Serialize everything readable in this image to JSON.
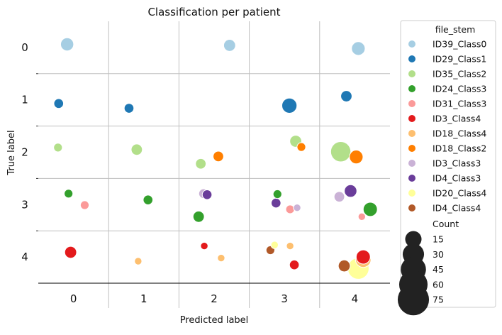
{
  "chart_data": {
    "type": "scatter",
    "title": "Classification per patient",
    "xlabel": "Predicted label",
    "ylabel": "True label",
    "x_ticks": [
      "0",
      "1",
      "2",
      "3",
      "4"
    ],
    "y_ticks": [
      "0",
      "1",
      "2",
      "3",
      "4"
    ],
    "xlim": [
      -0.5,
      4.5
    ],
    "ylim": [
      4.5,
      -0.5
    ],
    "grid": true,
    "legend_position": "outside-right",
    "hue_title": "file_stem",
    "size_title": "Count",
    "series": [
      {
        "name": "ID39_Class0",
        "color": "#a6cee3",
        "points": [
          {
            "x": -0.09,
            "y": -0.06,
            "count": 8
          },
          {
            "x": 2.22,
            "y": -0.04,
            "count": 6
          },
          {
            "x": 4.05,
            "y": 0.02,
            "count": 9
          }
        ]
      },
      {
        "name": "ID29_Class1",
        "color": "#1f78b4",
        "points": [
          {
            "x": -0.21,
            "y": 1.07,
            "count": 3
          },
          {
            "x": 0.79,
            "y": 1.16,
            "count": 3
          },
          {
            "x": 3.07,
            "y": 1.11,
            "count": 12
          },
          {
            "x": 3.88,
            "y": 0.93,
            "count": 5
          }
        ]
      },
      {
        "name": "ID35_Class2",
        "color": "#b2df8a",
        "points": [
          {
            "x": -0.22,
            "y": 1.91,
            "count": 2
          },
          {
            "x": 0.9,
            "y": 1.95,
            "count": 5
          },
          {
            "x": 1.81,
            "y": 2.22,
            "count": 4
          },
          {
            "x": 3.16,
            "y": 1.79,
            "count": 6
          },
          {
            "x": 3.8,
            "y": 1.99,
            "count": 26
          }
        ]
      },
      {
        "name": "ID24_Class3",
        "color": "#33a02c",
        "points": [
          {
            "x": -0.07,
            "y": 2.79,
            "count": 2
          },
          {
            "x": 1.06,
            "y": 2.91,
            "count": 3
          },
          {
            "x": 1.78,
            "y": 3.23,
            "count": 5
          },
          {
            "x": 2.9,
            "y": 2.8,
            "count": 2
          },
          {
            "x": 4.22,
            "y": 3.09,
            "count": 10
          }
        ]
      },
      {
        "name": "ID31_Class3",
        "color": "#fb9a99",
        "points": [
          {
            "x": 0.16,
            "y": 3.01,
            "count": 2
          },
          {
            "x": 3.08,
            "y": 3.09,
            "count": 2
          },
          {
            "x": 4.1,
            "y": 3.23,
            "count": 1
          }
        ]
      },
      {
        "name": "ID3_Class4",
        "color": "#e31a1c",
        "points": [
          {
            "x": -0.04,
            "y": 3.91,
            "count": 6
          },
          {
            "x": 1.86,
            "y": 3.79,
            "count": 1
          },
          {
            "x": 3.14,
            "y": 4.15,
            "count": 3
          },
          {
            "x": 4.12,
            "y": 4.0,
            "count": 10
          }
        ]
      },
      {
        "name": "ID18_Class4",
        "color": "#fdbf6f",
        "points": [
          {
            "x": 0.92,
            "y": 4.08,
            "count": 1
          },
          {
            "x": 2.1,
            "y": 4.02,
            "count": 1
          },
          {
            "x": 3.08,
            "y": 3.79,
            "count": 1
          },
          {
            "x": 4.12,
            "y": 4.05,
            "count": 13
          }
        ]
      },
      {
        "name": "ID18_Class2",
        "color": "#ff7f00",
        "points": [
          {
            "x": 2.06,
            "y": 2.08,
            "count": 4
          },
          {
            "x": 3.24,
            "y": 1.9,
            "count": 2
          },
          {
            "x": 4.02,
            "y": 2.09,
            "count": 9
          }
        ]
      },
      {
        "name": "ID3_Class3",
        "color": "#cab2d6",
        "points": [
          {
            "x": 1.85,
            "y": 2.79,
            "count": 3
          },
          {
            "x": 3.18,
            "y": 3.06,
            "count": 1
          },
          {
            "x": 3.78,
            "y": 2.85,
            "count": 4
          }
        ]
      },
      {
        "name": "ID4_Class3",
        "color": "#6a3d9a",
        "points": [
          {
            "x": 1.9,
            "y": 2.81,
            "count": 3
          },
          {
            "x": 2.88,
            "y": 2.97,
            "count": 3
          },
          {
            "x": 3.94,
            "y": 2.74,
            "count": 7
          }
        ]
      },
      {
        "name": "ID20_Class4",
        "color": "#ffff99",
        "points": [
          {
            "x": 2.86,
            "y": 3.77,
            "count": 1
          },
          {
            "x": 4.05,
            "y": 4.22,
            "count": 30
          }
        ]
      },
      {
        "name": "ID4_Class4",
        "color": "#b15928",
        "points": [
          {
            "x": 2.8,
            "y": 3.87,
            "count": 2
          },
          {
            "x": 3.85,
            "y": 4.17,
            "count": 6
          }
        ]
      }
    ],
    "size_legend": [
      15,
      30,
      45,
      60,
      75
    ]
  }
}
